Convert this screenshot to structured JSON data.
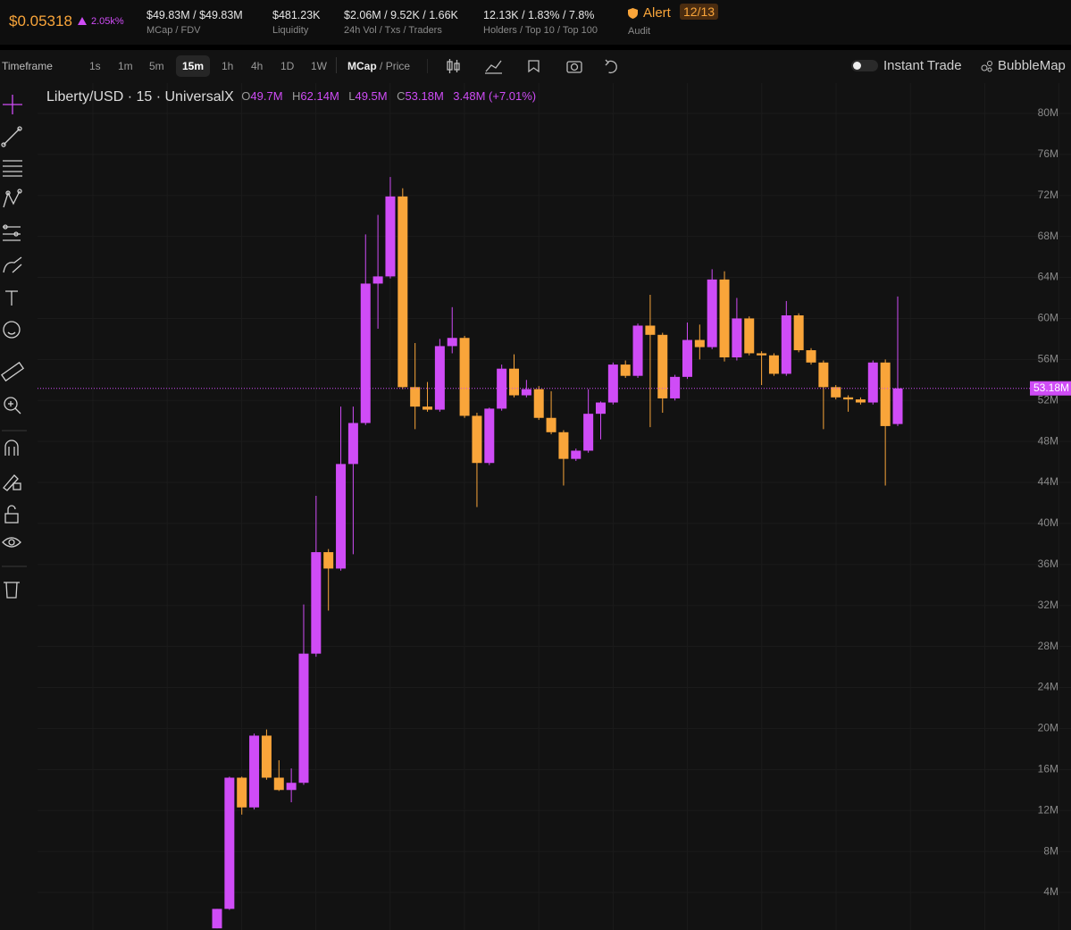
{
  "header": {
    "price": "$0.05318",
    "change": "2.05k%",
    "stats": [
      {
        "value": "$49.83M / $49.83M",
        "label": "MCap / FDV"
      },
      {
        "value": "$481.23K",
        "label": "Liquidity"
      },
      {
        "value": "$2.06M / 9.52K / 1.66K",
        "label": "24h Vol / Txs / Traders"
      },
      {
        "value": "12.13K / 1.83% / 7.8%",
        "label": "Holders / Top 10 / Top 100"
      }
    ],
    "alert": "Alert",
    "alert_count": "12/13",
    "audit": "Audit"
  },
  "toolbar": {
    "timeframe_label": "Timeframe",
    "timeframes": [
      "1s",
      "1m",
      "5m",
      "15m",
      "1h",
      "4h",
      "1D",
      "1W"
    ],
    "active_timeframe": "15m",
    "mcap": "MCap",
    "separator": "/",
    "price": "Price",
    "instant_trade": "Instant Trade",
    "bubblemap": "BubbleMap"
  },
  "chart_data": {
    "type": "candlestick",
    "title": "Liberty/USD · 15 · UniversalX",
    "ohlc_legend": [
      {
        "label": "O",
        "value": "49.7M"
      },
      {
        "label": "H",
        "value": "62.14M"
      },
      {
        "label": "L",
        "value": "49.5M"
      },
      {
        "label": "C",
        "value": "53.18M"
      }
    ],
    "legend_change": "3.48M (+7.01%)",
    "up_color": "#cf4cf6",
    "down_color": "#f9a53a",
    "open": [
      0.5,
      2.4,
      15.2,
      12.3,
      19.3,
      15.2,
      14.0,
      14.7,
      27.3,
      37.2,
      35.6,
      45.8,
      49.8,
      63.4,
      64.1,
      71.9,
      53.3,
      51.4,
      51.1,
      57.3,
      58.1,
      50.5,
      45.9,
      51.2,
      55.1,
      52.5,
      53.1,
      50.3,
      48.9,
      46.3,
      47.1,
      50.7,
      51.8,
      55.5,
      54.4,
      59.3,
      58.4,
      52.2,
      54.3,
      57.9,
      57.2,
      63.8,
      56.2,
      60.0,
      56.6,
      56.4,
      54.6,
      60.3,
      56.9,
      55.7,
      53.3,
      52.3,
      52.1,
      51.8,
      55.7,
      49.7
    ],
    "high": [
      2.4,
      15.3,
      15.3,
      19.5,
      19.9,
      16.9,
      16.1,
      32.1,
      42.7,
      37.5,
      51.4,
      51.4,
      68.2,
      70.1,
      73.8,
      72.7,
      57.6,
      53.8,
      58.0,
      61.1,
      58.3,
      50.8,
      51.3,
      55.5,
      56.5,
      54.0,
      53.4,
      52.9,
      49.1,
      47.3,
      53.1,
      51.9,
      55.7,
      55.9,
      59.5,
      62.3,
      58.6,
      54.5,
      59.6,
      59.4,
      64.8,
      64.6,
      62.0,
      60.2,
      56.8,
      56.6,
      61.7,
      60.5,
      57.1,
      55.9,
      53.5,
      52.5,
      52.3,
      55.9,
      56.0,
      62.14
    ],
    "low": [
      0.5,
      2.3,
      11.6,
      12.1,
      15.0,
      13.9,
      12.8,
      14.5,
      27.0,
      31.5,
      35.4,
      37.0,
      49.6,
      59.0,
      63.9,
      53.1,
      49.2,
      50.9,
      50.9,
      56.6,
      50.3,
      41.6,
      45.7,
      51.0,
      52.3,
      52.3,
      50.1,
      48.7,
      43.7,
      46.1,
      46.9,
      48.2,
      51.6,
      54.2,
      54.2,
      49.4,
      50.8,
      52.0,
      54.1,
      56.0,
      57.0,
      55.8,
      55.9,
      56.4,
      53.5,
      54.4,
      54.4,
      56.7,
      55.5,
      49.2,
      52.1,
      50.9,
      51.6,
      51.6,
      43.7,
      49.5
    ],
    "close": [
      2.4,
      15.2,
      12.3,
      19.3,
      15.2,
      14.0,
      14.7,
      27.3,
      37.2,
      35.6,
      45.8,
      49.8,
      63.4,
      64.1,
      71.9,
      53.3,
      51.4,
      51.1,
      57.3,
      58.1,
      50.5,
      45.9,
      51.2,
      55.1,
      52.5,
      53.1,
      50.3,
      48.9,
      46.3,
      47.1,
      50.7,
      51.8,
      55.5,
      54.4,
      59.3,
      58.4,
      52.2,
      54.3,
      57.9,
      57.2,
      63.8,
      56.2,
      60.0,
      56.6,
      56.4,
      54.6,
      60.3,
      56.9,
      55.7,
      53.3,
      52.3,
      52.1,
      51.8,
      55.7,
      49.5,
      53.18
    ],
    "ylim": [
      0.34,
      82.96
    ],
    "yticks": [
      {
        "value": 4,
        "label": "4M"
      },
      {
        "value": 8,
        "label": "8M"
      },
      {
        "value": 12,
        "label": "12M"
      },
      {
        "value": 16,
        "label": "16M"
      },
      {
        "value": 20,
        "label": "20M"
      },
      {
        "value": 24,
        "label": "24M"
      },
      {
        "value": 28,
        "label": "28M"
      },
      {
        "value": 32,
        "label": "32M"
      },
      {
        "value": 36,
        "label": "36M"
      },
      {
        "value": 40,
        "label": "40M"
      },
      {
        "value": 44,
        "label": "44M"
      },
      {
        "value": 48,
        "label": "48M"
      },
      {
        "value": 52,
        "label": "52M"
      },
      {
        "value": 56,
        "label": "56M"
      },
      {
        "value": 60,
        "label": "60M"
      },
      {
        "value": 64,
        "label": "64M"
      },
      {
        "value": 68,
        "label": "68M"
      },
      {
        "value": 72,
        "label": "72M"
      },
      {
        "value": 76,
        "label": "76M"
      },
      {
        "value": 80,
        "label": "80M"
      }
    ],
    "grid": true,
    "last_price": {
      "value": 53.18,
      "label": "53.18M"
    }
  }
}
